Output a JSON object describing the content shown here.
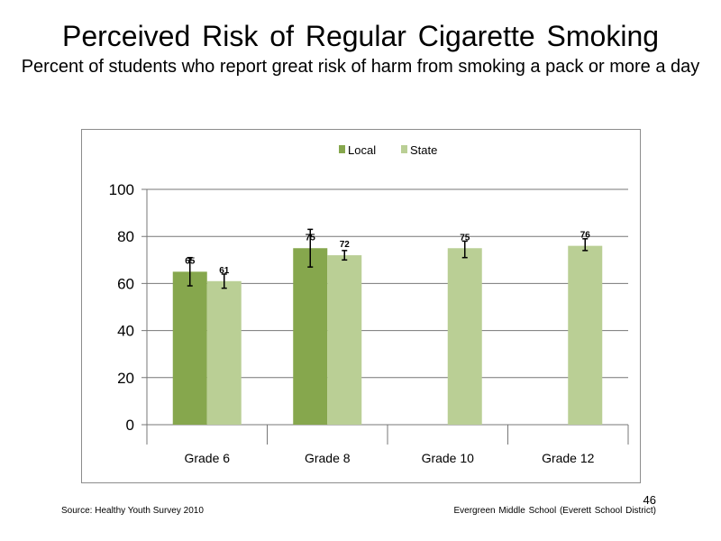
{
  "slide": {
    "title": "Perceived Risk of Regular Cigarette Smoking",
    "subtitle": "Percent of students who report great risk of harm from smoking a pack or more a day",
    "source": "Source: Healthy Youth Survey 2010",
    "school": "Evergreen Middle School (Everett School District)",
    "page_number": "46"
  },
  "chart_data": {
    "type": "bar",
    "categories": [
      "Grade 6",
      "Grade 8",
      "Grade 10",
      "Grade 12"
    ],
    "series": [
      {
        "name": "Local",
        "color": "#86a74d",
        "values": [
          65,
          75,
          null,
          null
        ],
        "error": [
          [
            59,
            71
          ],
          [
            67,
            83
          ],
          null,
          null
        ]
      },
      {
        "name": "State",
        "color": "#bacf95",
        "values": [
          61,
          72,
          75,
          76
        ],
        "error": [
          [
            58,
            64
          ],
          [
            70,
            74
          ],
          [
            71,
            78
          ],
          [
            74,
            79
          ]
        ]
      }
    ],
    "yticks": [
      0,
      20,
      40,
      60,
      80,
      100
    ],
    "ylim": [
      0,
      100
    ],
    "legend_position": "top-center",
    "grid": true
  }
}
